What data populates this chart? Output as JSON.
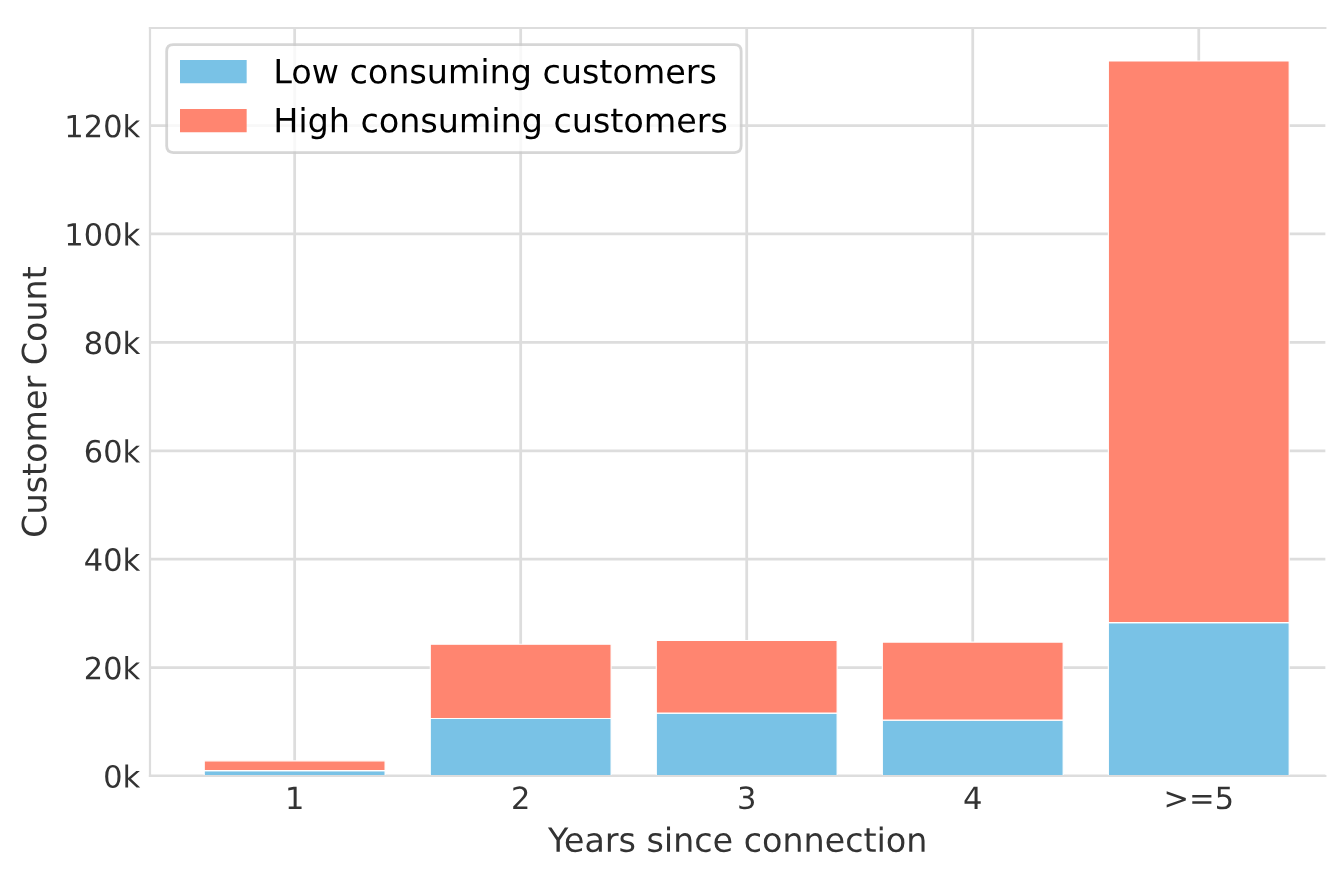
{
  "chart_data": {
    "type": "bar",
    "stacked": true,
    "xlabel": "Years since connection",
    "ylabel": "Customer Count",
    "categories": [
      "1",
      "2",
      "3",
      "4",
      ">=5"
    ],
    "series": [
      {
        "name": "Low consuming customers",
        "color": "#79c2e6",
        "values": [
          1000,
          10600,
          11600,
          10300,
          28300
        ]
      },
      {
        "name": "High consuming customers",
        "color": "#ff8570",
        "values": [
          1800,
          13700,
          13400,
          14400,
          103600
        ]
      }
    ],
    "ylim": [
      0,
      138000
    ],
    "yticks": [
      {
        "value": 0,
        "label": "0k"
      },
      {
        "value": 20000,
        "label": "20k"
      },
      {
        "value": 40000,
        "label": "40k"
      },
      {
        "value": 60000,
        "label": "60k"
      },
      {
        "value": 80000,
        "label": "80k"
      },
      {
        "value": 100000,
        "label": "100k"
      },
      {
        "value": 120000,
        "label": "120k"
      }
    ],
    "grid": true,
    "legend": "top left"
  }
}
